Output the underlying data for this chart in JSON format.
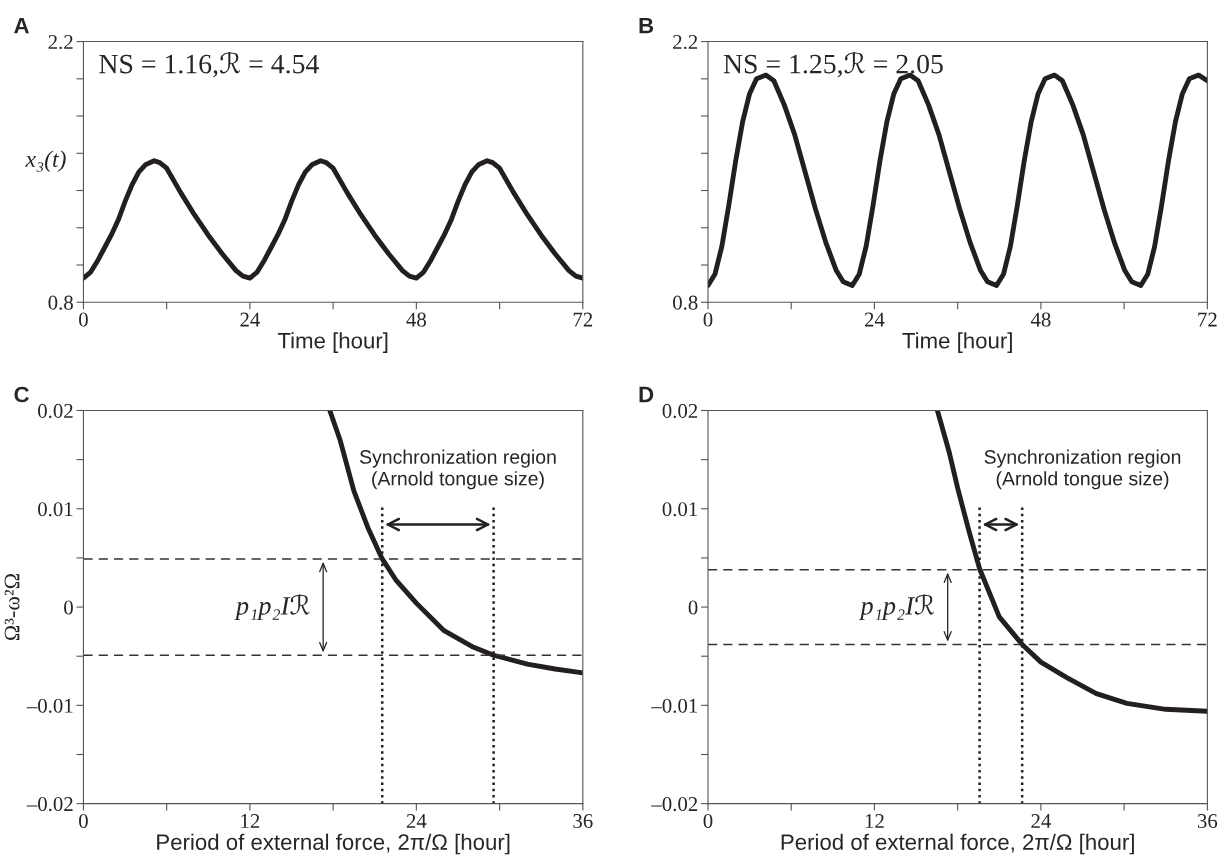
{
  "chart_data": [
    {
      "type": "line",
      "title": "A",
      "xlabel": "Time [hour]",
      "ylabel": "x₃(t)",
      "xlim": [
        0,
        72
      ],
      "ylim": [
        0.8,
        2.2
      ],
      "xticks": [
        0,
        {
          "value": 12,
          "label": null
        },
        24,
        {
          "value": 36,
          "label": null
        },
        48,
        {
          "value": 60,
          "label": null
        },
        72
      ],
      "yticks": [
        0.8,
        {
          "value": 1.0,
          "label": null
        },
        {
          "value": 1.2,
          "label": null
        },
        {
          "value": 1.4,
          "label": null
        },
        {
          "value": 1.6,
          "label": null
        },
        {
          "value": 1.8,
          "label": null
        },
        {
          "value": 2.0,
          "label": null
        },
        2.2
      ],
      "annotations": [
        "NS = 1.16,ℛ = 4.54"
      ],
      "series": [
        {
          "color": "#231f20",
          "x": [
            0,
            1,
            2,
            3,
            4,
            5,
            6,
            7,
            8,
            9,
            10.2,
            11,
            12,
            14,
            16,
            18,
            20,
            22,
            23,
            24,
            25,
            26,
            27,
            28,
            29,
            30,
            31,
            32,
            33,
            34.2,
            35,
            36,
            38,
            40,
            42,
            44,
            46,
            47,
            48,
            49,
            50,
            51,
            52,
            53,
            54,
            55,
            56,
            57,
            58.2,
            59,
            60,
            62,
            64,
            66,
            68,
            70,
            71,
            72
          ],
          "values": [
            0.93,
            0.96,
            1.02,
            1.09,
            1.16,
            1.24,
            1.34,
            1.43,
            1.5,
            1.54,
            1.56,
            1.55,
            1.52,
            1.39,
            1.27,
            1.16,
            1.06,
            0.97,
            0.94,
            0.93,
            0.96,
            1.02,
            1.09,
            1.16,
            1.24,
            1.34,
            1.43,
            1.5,
            1.54,
            1.56,
            1.55,
            1.52,
            1.39,
            1.27,
            1.16,
            1.06,
            0.97,
            0.94,
            0.93,
            0.96,
            1.02,
            1.09,
            1.16,
            1.24,
            1.34,
            1.43,
            1.5,
            1.54,
            1.56,
            1.55,
            1.52,
            1.39,
            1.27,
            1.16,
            1.06,
            0.97,
            0.94,
            0.93
          ]
        }
      ]
    },
    {
      "type": "line",
      "title": "B",
      "xlabel": "Time [hour]",
      "xlim": [
        0,
        72
      ],
      "ylim": [
        0.8,
        2.2
      ],
      "xticks": [
        0,
        {
          "value": 12,
          "label": null
        },
        24,
        {
          "value": 36,
          "label": null
        },
        48,
        {
          "value": 60,
          "label": null
        },
        72
      ],
      "yticks": [
        0.8,
        {
          "value": 1.0,
          "label": null
        },
        {
          "value": 1.2,
          "label": null
        },
        {
          "value": 1.4,
          "label": null
        },
        {
          "value": 1.6,
          "label": null
        },
        {
          "value": 1.8,
          "label": null
        },
        {
          "value": 2.0,
          "label": null
        },
        2.2
      ],
      "annotations": [
        "NS = 1.25,ℛ = 2.05"
      ],
      "series": [
        {
          "color": "#231f20",
          "x": [
            0,
            1,
            2,
            3,
            4,
            5,
            6,
            7,
            8.35,
            9.5,
            11,
            12.5,
            14,
            15.5,
            17,
            18.5,
            19.5,
            20.8,
            21.8,
            22.8,
            23.8,
            24.8,
            25.8,
            26.8,
            27.8,
            29.15,
            30.3,
            31.8,
            33.3,
            34.8,
            36.3,
            37.8,
            39.3,
            40.3,
            41.6,
            42.6,
            43.6,
            44.6,
            45.6,
            46.6,
            47.6,
            48.6,
            49.95,
            51.1,
            52.6,
            54.1,
            55.6,
            57.1,
            58.6,
            60.1,
            61.1,
            62.4,
            63.4,
            64.4,
            65.4,
            66.4,
            67.4,
            68.4,
            69.4,
            70.75,
            72
          ],
          "values": [
            0.89,
            0.95,
            1.1,
            1.32,
            1.56,
            1.77,
            1.92,
            2.0,
            2.02,
            1.99,
            1.86,
            1.7,
            1.5,
            1.3,
            1.12,
            0.97,
            0.91,
            0.89,
            0.95,
            1.1,
            1.32,
            1.56,
            1.77,
            1.92,
            2.0,
            2.02,
            1.99,
            1.86,
            1.7,
            1.5,
            1.3,
            1.12,
            0.97,
            0.91,
            0.89,
            0.95,
            1.1,
            1.32,
            1.56,
            1.77,
            1.92,
            2.0,
            2.02,
            1.99,
            1.86,
            1.7,
            1.5,
            1.3,
            1.12,
            0.97,
            0.91,
            0.89,
            0.95,
            1.1,
            1.32,
            1.56,
            1.77,
            1.92,
            2.0,
            2.02,
            1.99
          ]
        }
      ]
    },
    {
      "type": "line",
      "title": "C",
      "xlabel": "Period of external force, 2π/Ω [hour]",
      "ylabel": "Ω³-ω²Ω",
      "xlim": [
        0,
        36
      ],
      "ylim": [
        -0.02,
        0.02
      ],
      "xticks": [
        0,
        {
          "value": 6,
          "label": null
        },
        12,
        {
          "value": 18,
          "label": null
        },
        24,
        {
          "value": 30,
          "label": null
        },
        36
      ],
      "yticks": [
        {
          "value": -0.02,
          "label": "–0.02"
        },
        {
          "value": -0.015,
          "label": null
        },
        {
          "value": -0.01,
          "label": "–0.01"
        },
        {
          "value": -0.005,
          "label": null
        },
        0,
        {
          "value": 0.005,
          "label": null
        },
        0.01,
        {
          "value": 0.015,
          "label": null
        },
        0.02
      ],
      "annotations": [
        "Synchronization region\n(Arnold tongue size)",
        "p₁p₂Iℛ"
      ],
      "ref_lines": [
        {
          "axis": "y",
          "value": 0.0049,
          "line_style": "dashed",
          "color": "#333333"
        },
        {
          "axis": "y",
          "value": -0.0049,
          "line_style": "dashed",
          "color": "#333333"
        },
        {
          "axis": "x",
          "value": 21.54,
          "line_style": "dotted",
          "color": "#231f20"
        },
        {
          "axis": "x",
          "value": 29.57,
          "line_style": "dotted",
          "color": "#231f20"
        }
      ],
      "series": [
        {
          "color": "#231f20",
          "x": [
            17.76,
            18.5,
            19.5,
            20.5,
            21.54,
            22.5,
            24,
            26,
            28,
            29.57,
            32,
            34,
            36
          ],
          "values": [
            0.02,
            0.017,
            0.0118,
            0.0081,
            0.0049,
            0.0028,
            0.0004,
            -0.0024,
            -0.004,
            -0.0049,
            -0.0058,
            -0.0063,
            -0.0067
          ]
        }
      ]
    },
    {
      "type": "line",
      "title": "D",
      "xlabel": "Period of external force, 2π/Ω [hour]",
      "xlim": [
        0,
        36
      ],
      "ylim": [
        -0.02,
        0.02
      ],
      "xticks": [
        0,
        {
          "value": 6,
          "label": null
        },
        12,
        {
          "value": 18,
          "label": null
        },
        24,
        {
          "value": 30,
          "label": null
        },
        36
      ],
      "yticks": [
        {
          "value": -0.02,
          "label": "–0.02"
        },
        {
          "value": -0.015,
          "label": null
        },
        {
          "value": -0.01,
          "label": "–0.01"
        },
        {
          "value": -0.005,
          "label": null
        },
        0,
        {
          "value": 0.005,
          "label": null
        },
        0.01,
        {
          "value": 0.015,
          "label": null
        },
        0.02
      ],
      "annotations": [
        "Synchronization region\n(Arnold tongue size)",
        "p₁p₂Iℛ"
      ],
      "ref_lines": [
        {
          "axis": "y",
          "value": 0.0038,
          "line_style": "dashed",
          "color": "#333333"
        },
        {
          "axis": "y",
          "value": -0.0038,
          "line_style": "dashed",
          "color": "#333333"
        },
        {
          "axis": "x",
          "value": 19.58,
          "line_style": "dotted",
          "color": "#231f20"
        },
        {
          "axis": "x",
          "value": 22.65,
          "line_style": "dotted",
          "color": "#231f20"
        }
      ],
      "series": [
        {
          "color": "#231f20",
          "x": [
            16.54,
            17.4,
            18.0,
            18.8,
            19.58,
            21,
            22.65,
            24,
            25.9,
            28,
            30.2,
            33,
            36
          ],
          "values": [
            0.02,
            0.0157,
            0.0121,
            0.0078,
            0.0039,
            -0.001,
            -0.0038,
            -0.0056,
            -0.0072,
            -0.0088,
            -0.0098,
            -0.0104,
            -0.0106
          ]
        }
      ]
    }
  ]
}
